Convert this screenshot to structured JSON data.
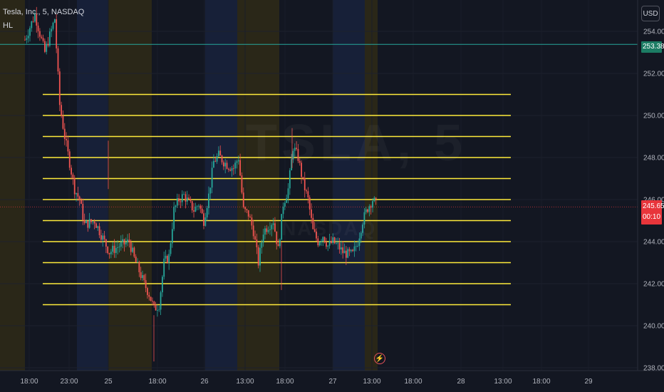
{
  "legend": {
    "symbol": "Tesla, Inc.",
    "interval": "5",
    "exchange": "NASDAQ",
    "indicator": "HL"
  },
  "currency": "USD",
  "watermark": {
    "ticker": "TSLA, 5",
    "sub": "NASDAQ"
  },
  "price_axis": {
    "ticks": [
      "254.00",
      "252.00",
      "250.00",
      "248.00",
      "246.00",
      "244.00",
      "242.00",
      "240.00",
      "238.00"
    ]
  },
  "price_badges": {
    "line_price": "253.38",
    "last_price": "245.65",
    "countdown": "00:10"
  },
  "time_axis": {
    "ticks": [
      "18:00",
      "23:00",
      "25",
      "18:00",
      "26",
      "13:00",
      "18:00",
      "27",
      "13:00",
      "18:00",
      "28",
      "13:00",
      "18:00",
      "29"
    ]
  },
  "colors": {
    "background": "#131722",
    "hl_lines": "#ffeb3b",
    "price_line": "#26a69a",
    "last_price": "#e8353b",
    "up": "#26a69a",
    "down": "#ef5350",
    "session_pre": "#2a2718",
    "session_post": "#172038"
  },
  "icons": {
    "alert": "lightning-icon"
  },
  "chart_data": {
    "type": "candlestick",
    "ylim": [
      237.8,
      255.2
    ],
    "hl_levels": [
      251,
      250,
      249,
      248,
      247,
      246,
      245,
      244,
      243,
      242,
      241
    ],
    "horizontal_line": 253.38,
    "last_price": 245.65,
    "close_path": [
      [
        0,
        253.6
      ],
      [
        2,
        254.8
      ],
      [
        4,
        253.0
      ],
      [
        6,
        254.6
      ],
      [
        7,
        250.5
      ],
      [
        8,
        249.0
      ],
      [
        10,
        246.5
      ],
      [
        11,
        246.0
      ],
      [
        12,
        244.8
      ],
      [
        14,
        245.0
      ],
      [
        16,
        244.0
      ],
      [
        17,
        243.5
      ],
      [
        19,
        243.8
      ],
      [
        21,
        244.0
      ],
      [
        22,
        243.2
      ],
      [
        24,
        242.0
      ],
      [
        25,
        241.5
      ],
      [
        26,
        240.8
      ],
      [
        27,
        241.0
      ],
      [
        28,
        243.0
      ],
      [
        29,
        243.3
      ],
      [
        30,
        245.5
      ],
      [
        31,
        246.0
      ],
      [
        32,
        246.2
      ],
      [
        34,
        245.5
      ],
      [
        35,
        245.8
      ],
      [
        36,
        245.0
      ],
      [
        37,
        246.2
      ],
      [
        38,
        247.8
      ],
      [
        39,
        248.1
      ],
      [
        40,
        247.8
      ],
      [
        41,
        247.6
      ],
      [
        42,
        247.5
      ],
      [
        43,
        248.0
      ],
      [
        44,
        245.5
      ],
      [
        45,
        245.3
      ],
      [
        46,
        244.5
      ],
      [
        47,
        243.0
      ],
      [
        48,
        244.5
      ],
      [
        50,
        245.0
      ],
      [
        51,
        243.6
      ],
      [
        52,
        245.8
      ],
      [
        53,
        246.5
      ],
      [
        54,
        248.5
      ],
      [
        55,
        248.0
      ],
      [
        56,
        246.8
      ],
      [
        57,
        246.0
      ],
      [
        58,
        244.5
      ],
      [
        59,
        244.0
      ],
      [
        60,
        244.3
      ],
      [
        61,
        243.8
      ],
      [
        62,
        244.0
      ],
      [
        63,
        243.8
      ],
      [
        64,
        243.5
      ],
      [
        65,
        243.4
      ],
      [
        66,
        243.4
      ],
      [
        67,
        244.0
      ],
      [
        68,
        245.0
      ],
      [
        69,
        245.6
      ],
      [
        70,
        246.0
      ],
      [
        71,
        245.7
      ]
    ]
  }
}
